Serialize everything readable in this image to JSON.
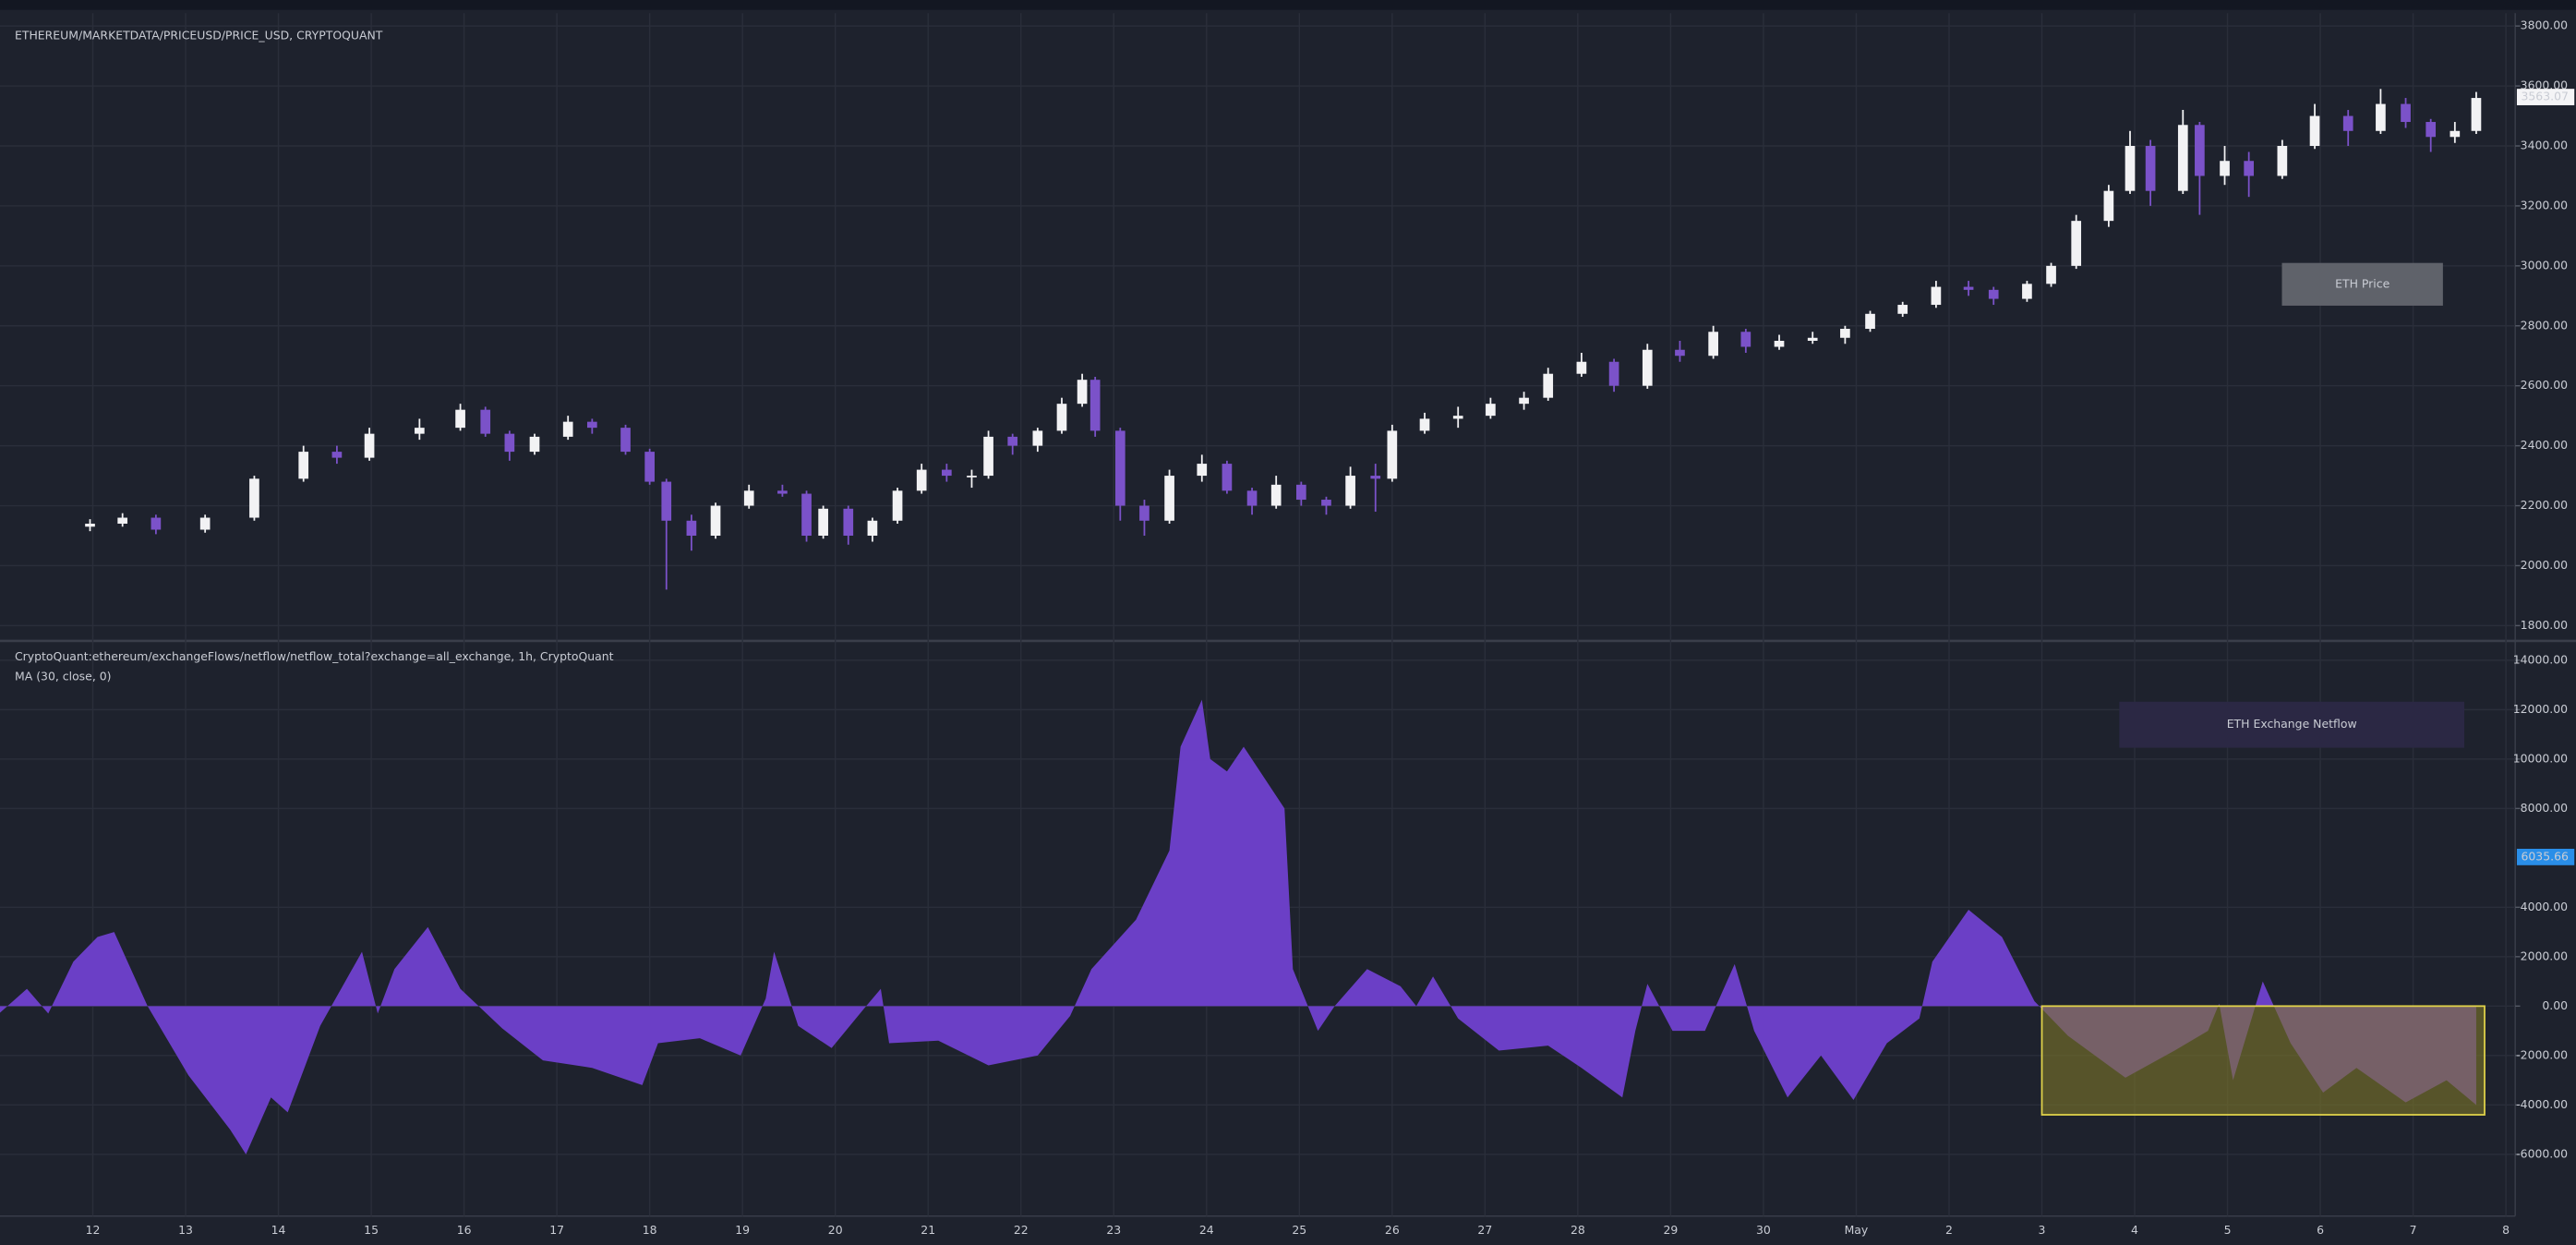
{
  "chart_data": [
    {
      "type": "candlestick",
      "title": "ETHEREUM/MARKETDATA/PRICEUSD/PRICE_USD, CRYPTOQUANT",
      "annotation": "ETH Price",
      "last_value": 3563.07,
      "up_color": "#f2f2f4",
      "down_color": "#7b52c9",
      "x": [
        11.97,
        12.32,
        12.68,
        13.21,
        13.74,
        14.27,
        14.63,
        14.98,
        15.52,
        15.96,
        16.23,
        16.49,
        16.76,
        17.12,
        17.38,
        17.74,
        18.0,
        18.18,
        18.45,
        18.71,
        19.07,
        19.43,
        19.69,
        19.87,
        20.14,
        20.4,
        20.67,
        20.93,
        21.2,
        21.47,
        21.65,
        21.91,
        22.18,
        22.44,
        22.66,
        22.8,
        23.07,
        23.33,
        23.6,
        23.95,
        24.22,
        24.49,
        24.75,
        25.02,
        25.29,
        25.55,
        25.82,
        26.0,
        26.35,
        26.71,
        27.06,
        27.42,
        27.68,
        28.04,
        28.39,
        28.75,
        29.1,
        29.46,
        29.81,
        30.17,
        30.53,
        30.88,
        31.15,
        31.5,
        31.86,
        32.21,
        32.48,
        32.84,
        33.1,
        33.37,
        33.72,
        33.95,
        34.17,
        34.52,
        34.7,
        34.97,
        35.23,
        35.59,
        35.94,
        36.3,
        36.65,
        36.92,
        37.19,
        37.45,
        37.68
      ],
      "open": [
        2130,
        2140,
        2160,
        2120,
        2160,
        2290,
        2380,
        2360,
        2440,
        2460,
        2520,
        2440,
        2380,
        2430,
        2480,
        2460,
        2380,
        2280,
        2150,
        2100,
        2200,
        2250,
        2240,
        2100,
        2190,
        2100,
        2150,
        2250,
        2320,
        2300,
        2300,
        2430,
        2400,
        2450,
        2540,
        2620,
        2450,
        2200,
        2150,
        2300,
        2340,
        2250,
        2200,
        2270,
        2220,
        2200,
        2300,
        2290,
        2450,
        2490,
        2500,
        2540,
        2560,
        2640,
        2680,
        2600,
        2720,
        2700,
        2780,
        2730,
        2750,
        2760,
        2790,
        2840,
        2870,
        2930,
        2920,
        2890,
        2940,
        3000,
        3150,
        3250,
        3400,
        3250,
        3470,
        3300,
        3350,
        3300,
        3400,
        3500,
        3450,
        3540,
        3480,
        3430,
        3450
      ],
      "high": [
        2155,
        2175,
        2170,
        2170,
        2300,
        2400,
        2400,
        2460,
        2490,
        2540,
        2530,
        2450,
        2440,
        2500,
        2490,
        2470,
        2390,
        2290,
        2170,
        2210,
        2270,
        2270,
        2250,
        2200,
        2200,
        2160,
        2260,
        2340,
        2340,
        2320,
        2450,
        2440,
        2460,
        2560,
        2640,
        2630,
        2460,
        2220,
        2320,
        2370,
        2350,
        2260,
        2300,
        2280,
        2230,
        2330,
        2340,
        2470,
        2510,
        2530,
        2560,
        2580,
        2660,
        2710,
        2690,
        2740,
        2750,
        2800,
        2790,
        2770,
        2780,
        2800,
        2850,
        2880,
        2950,
        2950,
        2930,
        2950,
        3010,
        3170,
        3270,
        3450,
        3420,
        3520,
        3480,
        3400,
        3380,
        3420,
        3540,
        3520,
        3590,
        3560,
        3490,
        3480,
        3580
      ],
      "low": [
        2115,
        2130,
        2105,
        2110,
        2150,
        2280,
        2340,
        2350,
        2420,
        2450,
        2430,
        2350,
        2370,
        2420,
        2440,
        2370,
        2270,
        1920,
        2050,
        2090,
        2190,
        2230,
        2080,
        2090,
        2070,
        2080,
        2140,
        2240,
        2280,
        2260,
        2290,
        2370,
        2380,
        2440,
        2530,
        2430,
        2150,
        2100,
        2140,
        2280,
        2240,
        2170,
        2190,
        2200,
        2170,
        2190,
        2180,
        2280,
        2440,
        2460,
        2490,
        2520,
        2550,
        2630,
        2580,
        2590,
        2680,
        2690,
        2710,
        2720,
        2740,
        2740,
        2780,
        2830,
        2860,
        2900,
        2870,
        2880,
        2930,
        2990,
        3130,
        3240,
        3200,
        3240,
        3170,
        3270,
        3230,
        3290,
        3390,
        3400,
        3440,
        3460,
        3380,
        3410,
        3440
      ],
      "close": [
        2140,
        2160,
        2120,
        2160,
        2290,
        2380,
        2360,
        2440,
        2460,
        2520,
        2440,
        2380,
        2430,
        2480,
        2460,
        2380,
        2280,
        2150,
        2100,
        2200,
        2250,
        2240,
        2100,
        2190,
        2100,
        2150,
        2250,
        2320,
        2300,
        2300,
        2430,
        2400,
        2450,
        2540,
        2620,
        2450,
        2200,
        2150,
        2300,
        2340,
        2250,
        2200,
        2270,
        2220,
        2200,
        2300,
        2290,
        2450,
        2490,
        2500,
        2540,
        2560,
        2640,
        2680,
        2600,
        2720,
        2700,
        2780,
        2730,
        2750,
        2760,
        2790,
        2840,
        2870,
        2930,
        2920,
        2890,
        2940,
        3000,
        3150,
        3250,
        3400,
        3250,
        3470,
        3300,
        3350,
        3300,
        3400,
        3500,
        3450,
        3540,
        3480,
        3430,
        3450,
        3560
      ],
      "xlim": [
        11.0,
        38.1
      ],
      "ylim": [
        1760,
        3810
      ],
      "yticks": [
        {
          "value": 3800,
          "label": "3800.00"
        },
        {
          "value": 3600,
          "label": "3600.00"
        },
        {
          "value": 3400,
          "label": "3400.00"
        },
        {
          "value": 3200,
          "label": "3200.00"
        },
        {
          "value": 3000,
          "label": "3000.00"
        },
        {
          "value": 2800,
          "label": "2800.00"
        },
        {
          "value": 2600,
          "label": "2600.00"
        },
        {
          "value": 2400,
          "label": "2400.00"
        },
        {
          "value": 2200,
          "label": "2200.00"
        },
        {
          "value": 2000,
          "label": "2000.00"
        },
        {
          "value": 1800,
          "label": "1800.00"
        }
      ]
    },
    {
      "type": "area",
      "title": "CryptoQuant:ethereum/exchangeFlows/netflow/netflow_total?exchange=all_exchange, 1h, CryptoQuant",
      "subtitle": "MA (30, close, 0)",
      "annotation": "ETH Exchange Netflow",
      "marker_value": 6035.66,
      "color": "#6b3fc6",
      "x": [
        10.99,
        11.29,
        11.52,
        11.79,
        12.05,
        12.23,
        12.59,
        13.03,
        13.48,
        13.65,
        13.92,
        14.1,
        14.45,
        14.72,
        14.9,
        15.07,
        15.25,
        15.61,
        15.96,
        16.41,
        16.85,
        17.38,
        17.92,
        18.09,
        18.54,
        18.98,
        19.25,
        19.34,
        19.6,
        19.96,
        20.31,
        20.49,
        20.58,
        21.11,
        21.65,
        22.18,
        22.53,
        22.76,
        23.24,
        23.6,
        23.72,
        23.95,
        24.04,
        24.22,
        24.4,
        24.84,
        24.93,
        25.2,
        25.38,
        25.73,
        26.09,
        26.26,
        26.44,
        26.71,
        27.15,
        27.68,
        28.04,
        28.48,
        28.62,
        28.75,
        29.02,
        29.37,
        29.69,
        29.9,
        30.26,
        30.62,
        30.97,
        31.33,
        31.68,
        31.82,
        32.21,
        32.57,
        32.92,
        33.28,
        33.9,
        34.43,
        34.79,
        34.91,
        35.06,
        35.38,
        35.68,
        36.03,
        36.39,
        36.92,
        37.36,
        37.68
      ],
      "values": [
        -300,
        700,
        -300,
        1800,
        2800,
        3000,
        0,
        -2800,
        -5000,
        -6000,
        -3700,
        -4300,
        -800,
        1000,
        2200,
        -300,
        1500,
        3200,
        700,
        -900,
        -2200,
        -2500,
        -3200,
        -1500,
        -1300,
        -2000,
        300,
        2200,
        -800,
        -1700,
        -100,
        700,
        -1500,
        -1400,
        -2400,
        -2000,
        -400,
        1500,
        3500,
        6300,
        10500,
        12400,
        10000,
        9500,
        10500,
        8000,
        1500,
        -1000,
        0,
        1500,
        800,
        0,
        1200,
        -500,
        -1800,
        -1600,
        -2500,
        -3700,
        -1000,
        900,
        -1000,
        -1000,
        1700,
        -1000,
        -3700,
        -2000,
        -3800,
        -1500,
        -500,
        1800,
        3900,
        2800,
        200,
        -1200,
        -2900,
        -1800,
        -1000,
        100,
        -3000,
        1000,
        -1500,
        -3500,
        -2500,
        -3900,
        -3000,
        -4000
      ],
      "highlight": {
        "x": [
          33.0,
          37.77
        ],
        "y": [
          -4400,
          0
        ]
      },
      "xlim": [
        11.0,
        38.1
      ],
      "ylim": [
        -8500,
        14650
      ],
      "yticks": [
        {
          "value": 14000,
          "label": "14000.00"
        },
        {
          "value": 12000,
          "label": "12000.00"
        },
        {
          "value": 10000,
          "label": "10000.00"
        },
        {
          "value": 8000,
          "label": "8000.00"
        },
        {
          "value": 4000,
          "label": "4000.00"
        },
        {
          "value": 2000,
          "label": "2000.00"
        },
        {
          "value": 0,
          "label": "0.00"
        },
        {
          "value": -2000,
          "label": "-2000.00"
        },
        {
          "value": -4000,
          "label": "-4000.00"
        },
        {
          "value": -6000,
          "label": "-6000.00"
        }
      ],
      "xticks": [
        12,
        13,
        14,
        15,
        16,
        17,
        18,
        19,
        20,
        21,
        22,
        23,
        24,
        25,
        26,
        27,
        28,
        29,
        30,
        {
          "value": 31,
          "label": "May"
        },
        {
          "value": 32,
          "label": "2"
        },
        {
          "value": 33,
          "label": "3"
        },
        {
          "value": 34,
          "label": "4"
        },
        {
          "value": 35,
          "label": "5"
        },
        {
          "value": 36,
          "label": "6"
        },
        {
          "value": 37,
          "label": "7"
        },
        {
          "value": 38,
          "label": "8"
        }
      ]
    }
  ]
}
